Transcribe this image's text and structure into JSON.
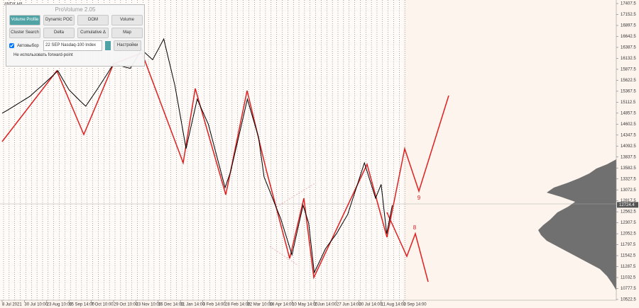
{
  "symbol": "#NDX,H4",
  "panel": {
    "title": "ProVolume 2.05",
    "buttons": [
      "Volume Profile",
      "Dynamic POC",
      "DOM",
      "Volume",
      "Cluster Search",
      "Delta",
      "Cumulative Δ",
      "Map"
    ],
    "autoselect": "Автовыбор",
    "instrument": "22 SEP Nasdaq-100 Index",
    "settings": "Настройки",
    "forward_point": "Не использовать forward-point"
  },
  "chart_data": {
    "type": "line",
    "categories": [
      "8 Jul 2021",
      null,
      null,
      null,
      "30 Jul 10:00",
      null,
      null,
      null,
      "23 Aug 10:00",
      null,
      null,
      null,
      "15 Sep 14:00",
      null,
      null,
      null,
      "7 Oct 10:00",
      null,
      null,
      null,
      "29 Oct 10:00",
      null,
      null,
      null,
      "23 Nov 10:00",
      null,
      null,
      null,
      "16 Dec 14:00",
      null,
      null,
      null,
      "11 Jan 14:00",
      null,
      null,
      null,
      "3 Feb 14:00",
      null,
      null,
      null,
      "28 Feb 14:00",
      null,
      null,
      null,
      "22 Mar 10:00",
      null,
      null,
      null,
      "18 Apr 14:00",
      null,
      null,
      null,
      "10 May 14:00",
      null,
      null,
      null,
      "2 Jun 14:00",
      null,
      null,
      null,
      "27 Jun 14:00",
      null,
      null,
      null,
      "20 Jul 14:00",
      null,
      null,
      null,
      "11 Aug 14:00",
      null,
      null,
      null,
      "2 Sep 14:00"
    ],
    "series": [
      {
        "color": "#000000",
        "values": [
          14855,
          14930,
          15010,
          15090,
          15170,
          15250,
          15370,
          15480,
          15600,
          15720,
          15843,
          15620,
          15400,
          15270,
          15140,
          15019,
          15210,
          15400,
          15600,
          15800,
          16008,
          15970,
          15930,
          15900,
          16120,
          16337,
          16220,
          16100,
          16340,
          16584,
          16040,
          15500,
          14770,
          14031,
          14610,
          15184,
          14890,
          14600,
          14110,
          13620,
          13125,
          13500,
          14060,
          14620,
          15184,
          14740,
          14300,
          13372,
          13050,
          12720,
          12400,
          11980,
          11561,
          12140,
          12714,
          12300,
          11149,
          11420,
          11700,
          11880,
          12055,
          12280,
          12500,
          12900,
          13300,
          13702,
          13290,
          12879,
          13200,
          12055,
          12714,
          null,
          null
        ]
      }
    ],
    "ylim": [
      10522.5,
      17407.5
    ],
    "yticks": [
      17407.5,
      17152.5,
      16897.5,
      16642.5,
      16387.5,
      16132.5,
      15877.5,
      15622.5,
      15367.5,
      15112.5,
      14857.5,
      14602.5,
      14347.5,
      14092.5,
      13837.5,
      13582.5,
      13327.5,
      13072.5,
      12817.5,
      12562.5,
      12307.5,
      12052.5,
      11797.5,
      11542.5,
      11287.5,
      11032.5,
      10777.5,
      10522.5
    ],
    "last_price": 12724.4,
    "annotations": [
      "9",
      "8"
    ]
  }
}
